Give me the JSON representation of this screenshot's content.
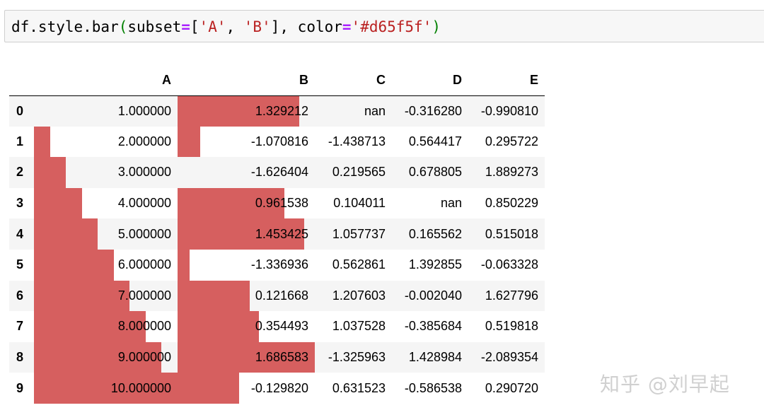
{
  "code": {
    "prefix": "df.style.bar",
    "open_paren": "(",
    "arg1_name": "subset",
    "eq1": "=",
    "list_open": "[",
    "str1": "'A'",
    "comma1": ", ",
    "str2": "'B'",
    "list_close": "]",
    "comma2": ", ",
    "arg2_name": "color",
    "eq2": "=",
    "str3": "'#d65f5f'",
    "close_paren": ")"
  },
  "bar_color": "#d65f5f",
  "table": {
    "columns": [
      "",
      "A",
      "B",
      "C",
      "D",
      "E"
    ],
    "rows": [
      {
        "index": "0",
        "A": "1.000000",
        "B": "1.329212",
        "C": "nan",
        "D": "-0.316280",
        "E": "-0.990810",
        "bar_a": 0.0,
        "bar_b": 0.8873
      },
      {
        "index": "1",
        "A": "2.000000",
        "B": "-1.070816",
        "C": "-1.438713",
        "D": "0.564417",
        "E": "0.295722",
        "bar_a": 0.1111,
        "bar_b": 0.165
      },
      {
        "index": "2",
        "A": "3.000000",
        "B": "-1.626404",
        "C": "0.219565",
        "D": "0.678805",
        "E": "1.889273",
        "bar_a": 0.2222,
        "bar_b": 0.0
      },
      {
        "index": "3",
        "A": "4.000000",
        "B": "0.961538",
        "C": "0.104011",
        "D": "nan",
        "E": "0.850229",
        "bar_a": 0.3333,
        "bar_b": 0.7768
      },
      {
        "index": "4",
        "A": "5.000000",
        "B": "1.453425",
        "C": "1.057737",
        "D": "0.165562",
        "E": "0.515018",
        "bar_a": 0.4444,
        "bar_b": 0.9245
      },
      {
        "index": "5",
        "A": "6.000000",
        "B": "-1.336936",
        "C": "0.562861",
        "D": "1.392855",
        "E": "-0.063328",
        "bar_a": 0.5556,
        "bar_b": 0.0868
      },
      {
        "index": "6",
        "A": "7.000000",
        "B": "0.121668",
        "C": "1.207603",
        "D": "-0.002040",
        "E": "1.627796",
        "bar_a": 0.6667,
        "bar_b": 0.5244
      },
      {
        "index": "7",
        "A": "8.000000",
        "B": "0.354493",
        "C": "1.037528",
        "D": "-0.385684",
        "E": "0.519818",
        "bar_a": 0.7778,
        "bar_b": 0.5942
      },
      {
        "index": "8",
        "A": "9.000000",
        "B": "1.686583",
        "C": "-1.325963",
        "D": "1.428984",
        "E": "-2.089354",
        "bar_a": 0.8889,
        "bar_b": 1.0
      },
      {
        "index": "9",
        "A": "10.000000",
        "B": "-0.129820",
        "C": "0.631523",
        "D": "-0.586538",
        "E": "0.290720",
        "bar_a": 1.0,
        "bar_b": 0.4483
      }
    ]
  },
  "watermark": "知乎 @刘早起"
}
